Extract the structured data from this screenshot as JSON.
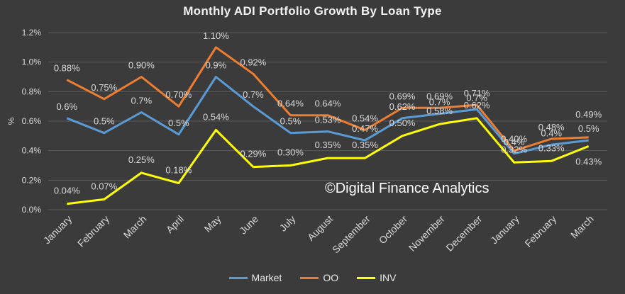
{
  "chart_data": {
    "type": "line",
    "title": "Monthly ADI Portfolio Growth By Loan Type",
    "ylabel": "%",
    "xlabel": "",
    "ylim": [
      0,
      1.2
    ],
    "y_ticks": [
      "0.0%",
      "0.2%",
      "0.4%",
      "0.6%",
      "0.8%",
      "1.0%",
      "1.2%"
    ],
    "grid": true,
    "legend": "bottom",
    "categories": [
      "January",
      "February",
      "March",
      "April",
      "May",
      "June",
      "July",
      "August",
      "September",
      "October",
      "November",
      "December",
      "January",
      "February",
      "March"
    ],
    "series": [
      {
        "name": "Market",
        "color": "#5b9bd5",
        "values": [
          0.62,
          0.52,
          0.66,
          0.51,
          0.9,
          0.7,
          0.52,
          0.53,
          0.47,
          0.62,
          0.65,
          0.68,
          0.38,
          0.44,
          0.47
        ],
        "labels": [
          "0.6%",
          "0.5%",
          "0.7%",
          "0.5%",
          "0.9%",
          "0.7%",
          "0.5%",
          "0.53%",
          "0.47%",
          "0.62%",
          "0.7%",
          "0.7%",
          "0.4%",
          "0.4%",
          "0.5%"
        ]
      },
      {
        "name": "OO",
        "color": "#ed7d31",
        "values": [
          0.88,
          0.75,
          0.9,
          0.7,
          1.1,
          0.92,
          0.64,
          0.64,
          0.54,
          0.69,
          0.69,
          0.71,
          0.4,
          0.48,
          0.49
        ],
        "labels": [
          "0.88%",
          "0.75%",
          "0.90%",
          "0.70%",
          "1.10%",
          "0.92%",
          "0.64%",
          "0.64%",
          "0.54%",
          "0.69%",
          "0.69%",
          "0.71%",
          "0.40%",
          "0.48%",
          "0.49%"
        ]
      },
      {
        "name": "INV",
        "color": "#ffff00",
        "values": [
          0.04,
          0.07,
          0.25,
          0.18,
          0.54,
          0.29,
          0.3,
          0.35,
          0.35,
          0.5,
          0.58,
          0.62,
          0.32,
          0.33,
          0.43
        ],
        "labels": [
          "0.04%",
          "0.07%",
          "0.25%",
          "0.18%",
          "0.54%",
          "0.29%",
          "0.30%",
          "0.35%",
          "0.35%",
          "0.50%",
          "0.58%",
          "0.62%",
          "0.32%",
          "0.33%",
          "0.43%"
        ]
      }
    ]
  },
  "watermark": "©Digital Finance Analytics"
}
